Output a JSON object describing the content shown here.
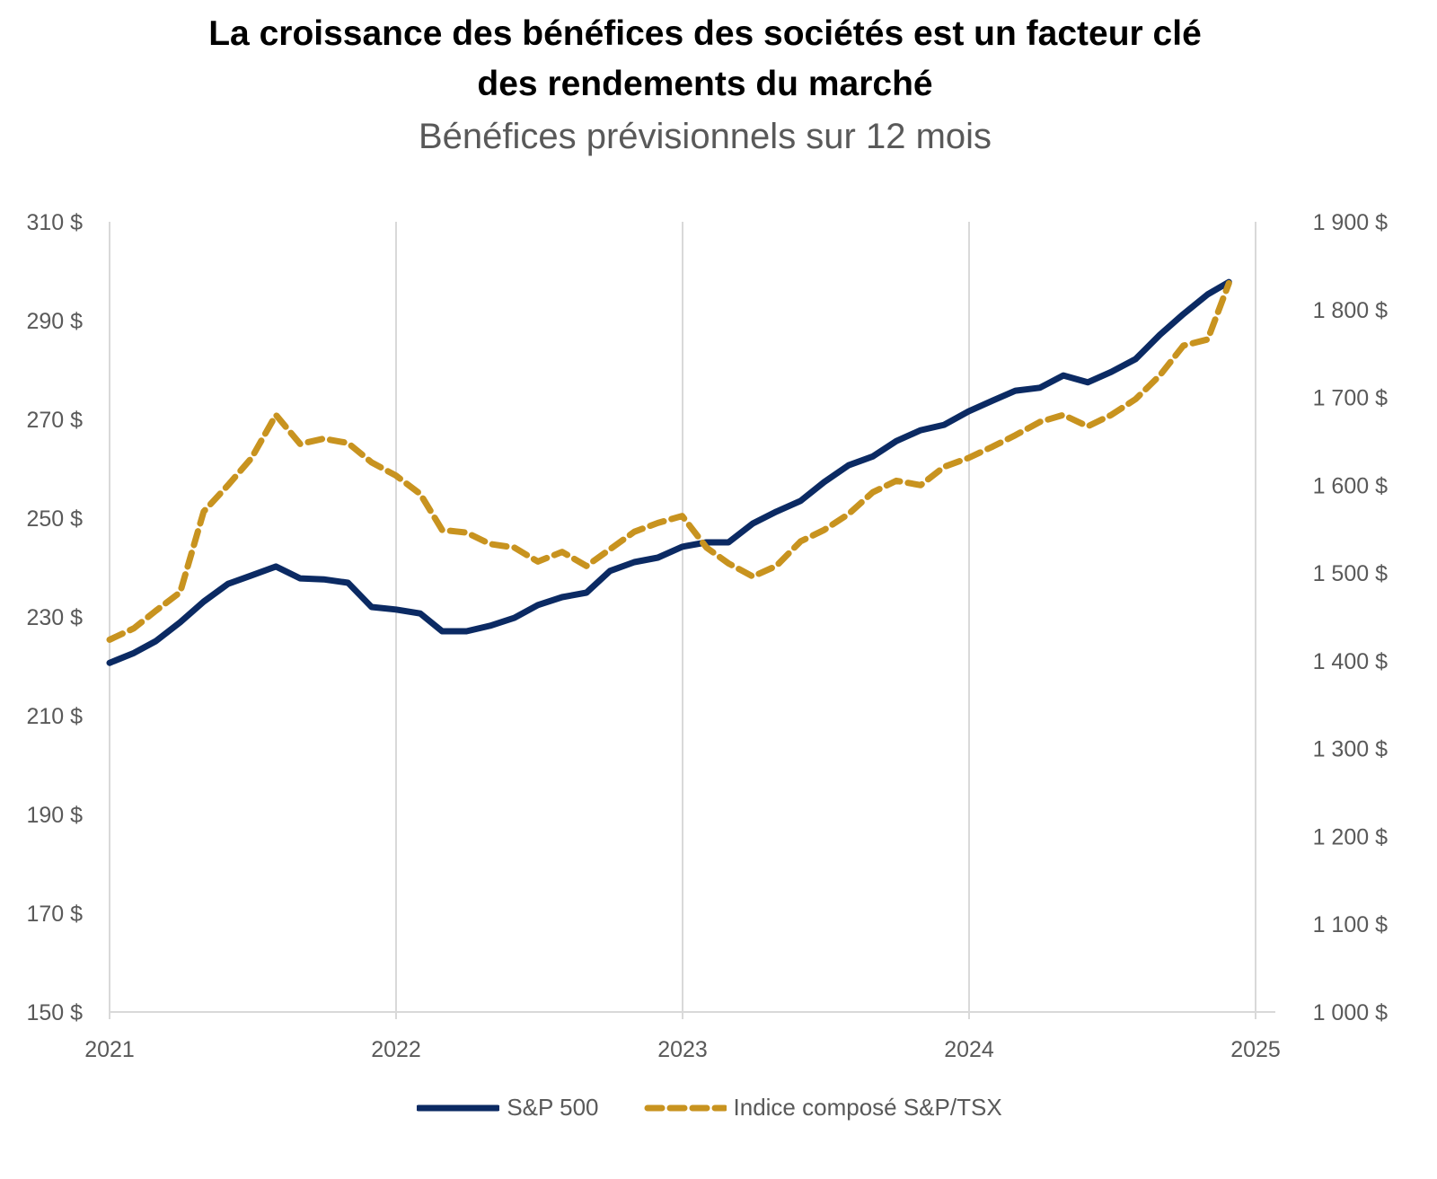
{
  "title_line1": "La croissance des bénéfices des sociétés est un facteur clé",
  "title_line2": "des rendements du marché",
  "subtitle": "Bénéfices prévisionnels sur 12 mois",
  "colors": {
    "sp500": "#0b2a63",
    "tsx": "#c8931f",
    "grid": "#d9d9d9"
  },
  "chart_data": {
    "type": "line",
    "title": "La croissance des bénéfices des sociétés est un facteur clé des rendements du marché",
    "subtitle": "Bénéfices prévisionnels sur 12 mois",
    "x_ticks": [
      "2021",
      "2022",
      "2023",
      "2024",
      "2025"
    ],
    "xlim": [
      "2021-01-01",
      "2025-01-01"
    ],
    "y_left": {
      "lim": [
        150,
        310
      ],
      "ticks": [
        "150 $",
        "170 $",
        "190 $",
        "210 $",
        "230 $",
        "250 $",
        "270 $",
        "290 $",
        "310 $"
      ]
    },
    "y_right": {
      "lim": [
        1000,
        1900
      ],
      "ticks": [
        "1 000 $",
        "1 100 $",
        "1 200 $",
        "1 300 $",
        "1 400 $",
        "1 500 $",
        "1 600 $",
        "1 700 $",
        "1 800 $",
        "1 900 $"
      ]
    },
    "grid": "vertical",
    "legend": "bottom",
    "x": [
      "2021-01-01",
      "2021-02-01",
      "2021-03-01",
      "2021-04-01",
      "2021-05-01",
      "2021-06-01",
      "2021-07-01",
      "2021-08-01",
      "2021-09-01",
      "2021-10-01",
      "2021-11-01",
      "2021-12-01",
      "2022-01-01",
      "2022-02-01",
      "2022-03-01",
      "2022-04-01",
      "2022-05-01",
      "2022-06-01",
      "2022-07-01",
      "2022-08-01",
      "2022-09-01",
      "2022-10-01",
      "2022-11-01",
      "2022-12-01",
      "2023-01-01",
      "2023-02-01",
      "2023-03-01",
      "2023-04-01",
      "2023-05-01",
      "2023-06-01",
      "2023-07-01",
      "2023-08-01",
      "2023-09-01",
      "2023-10-01",
      "2023-11-01",
      "2023-12-01",
      "2024-01-01",
      "2024-02-01",
      "2024-03-01",
      "2024-04-01",
      "2024-05-01",
      "2024-06-01",
      "2024-07-01",
      "2024-08-01",
      "2024-09-01",
      "2024-10-01",
      "2024-11-01",
      "2024-11-28"
    ],
    "series": [
      {
        "name": "S&P 500",
        "axis": "left",
        "style": "solid",
        "values": [
          220.7,
          222.7,
          225.1,
          228.9,
          233.1,
          236.7,
          238.4,
          240.2,
          237.8,
          237.6,
          236.9,
          232.0,
          231.5,
          230.7,
          227.1,
          227.1,
          228.2,
          229.8,
          232.4,
          234.0,
          234.9,
          239.3,
          241.1,
          242.0,
          244.2,
          245.1,
          245.1,
          248.9,
          251.3,
          253.5,
          257.3,
          260.7,
          262.5,
          265.6,
          267.8,
          268.9,
          271.6,
          273.8,
          275.8,
          276.4,
          278.9,
          277.5,
          279.6,
          282.2,
          287.1,
          291.3,
          295.3,
          297.8
        ]
      },
      {
        "name": "Indice composé S&P/TSX",
        "axis": "right",
        "style": "dashed",
        "values": [
          1424,
          1437,
          1457,
          1478,
          1570,
          1600,
          1631,
          1680,
          1647,
          1653,
          1648,
          1626,
          1611,
          1590,
          1549,
          1546,
          1533,
          1529,
          1513,
          1524,
          1508,
          1527,
          1547,
          1557,
          1565,
          1529,
          1511,
          1496,
          1508,
          1536,
          1549,
          1567,
          1592,
          1605,
          1600,
          1621,
          1631,
          1644,
          1657,
          1672,
          1680,
          1667,
          1680,
          1698,
          1725,
          1759,
          1766,
          1830
        ]
      }
    ]
  }
}
